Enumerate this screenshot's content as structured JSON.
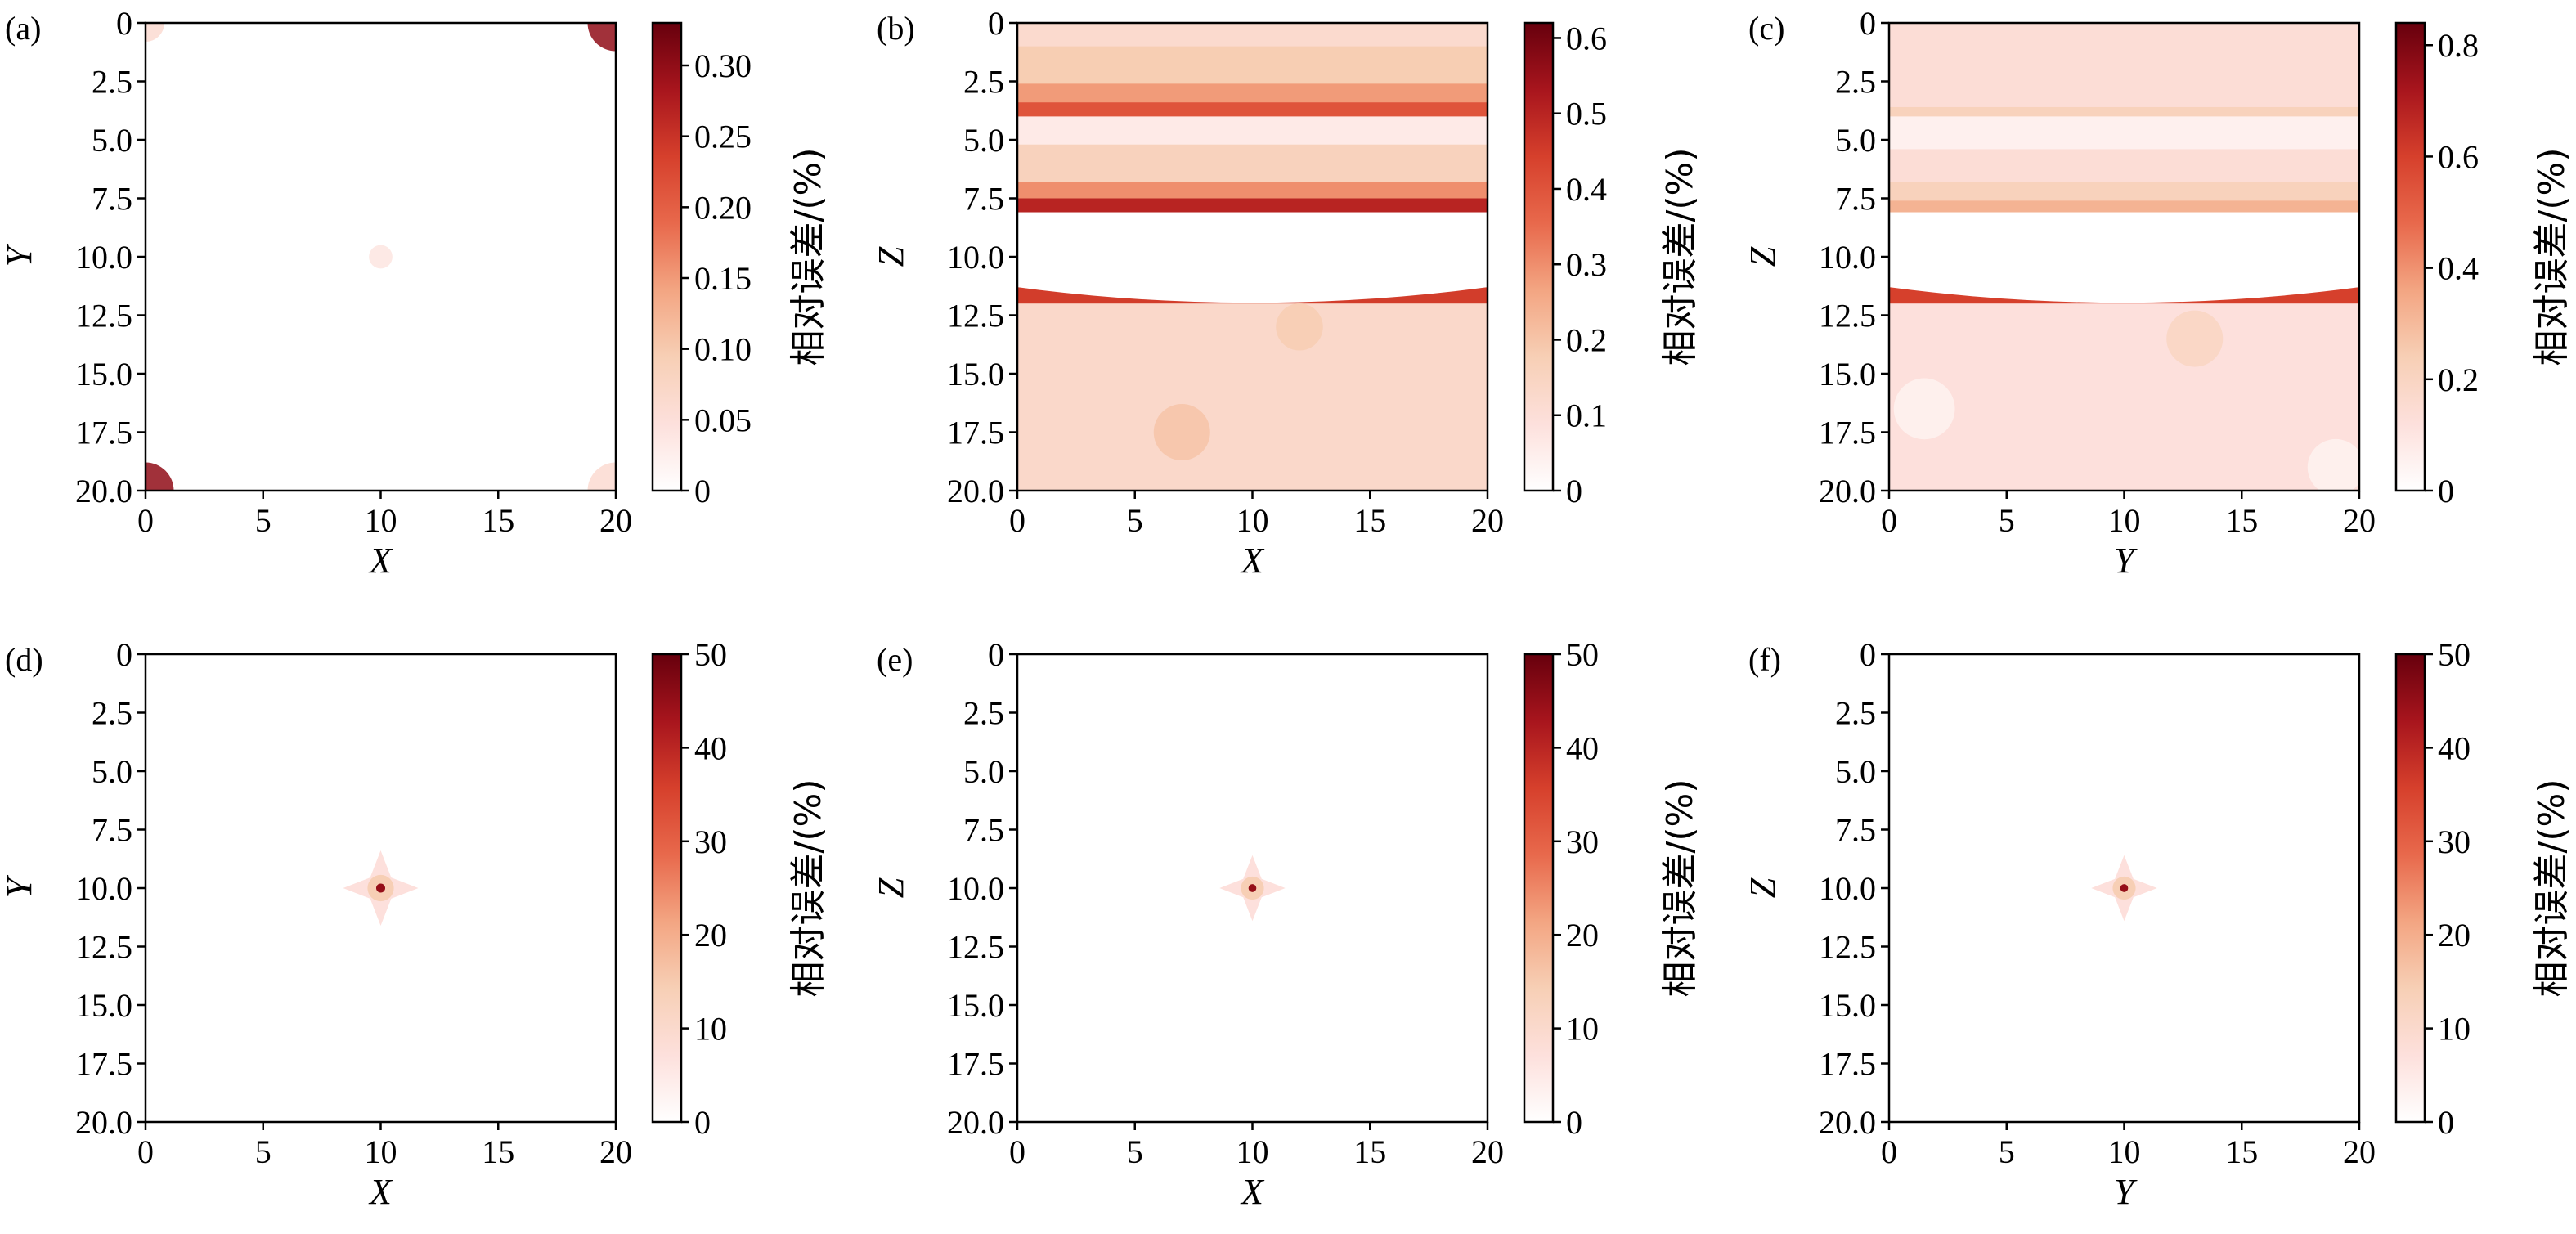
{
  "colormap": [
    "#ffffff",
    "#fde0dc",
    "#f7cfb5",
    "#f3a582",
    "#e8694c",
    "#d6402c",
    "#a8151d",
    "#67000d"
  ],
  "colorbar_label": "相对误差/(%)",
  "chart_data": [
    {
      "type": "heatmap",
      "panel": "(a)",
      "xlabel": "X",
      "ylabel": "Y",
      "xlim": [
        0,
        20
      ],
      "ylim": [
        20,
        0
      ],
      "xticks": [
        0,
        5,
        10,
        15,
        20
      ],
      "yticks": [
        0,
        2.5,
        5.0,
        7.5,
        10.0,
        12.5,
        15.0,
        17.5,
        20.0
      ],
      "colorbar": {
        "label": "相对误差/(%)",
        "min": 0,
        "max": 0.33,
        "ticks": [
          0,
          0.05,
          0.1,
          0.15,
          0.2,
          0.25,
          0.3
        ]
      },
      "tick_text": {
        "x": [
          "0",
          "5",
          "10",
          "15",
          "20"
        ],
        "y": [
          "0",
          "2.5",
          "5.0",
          "7.5",
          "10.0",
          "12.5",
          "15.0",
          "17.5",
          "20.0"
        ],
        "cbar": [
          "0",
          "0.05",
          "0.10",
          "0.15",
          "0.20",
          "0.25",
          "0.30"
        ]
      },
      "bands": [],
      "features": [
        {
          "kind": "corner",
          "x": 0,
          "y": 0,
          "r": 0.8,
          "value": 0.06
        },
        {
          "kind": "corner",
          "x": 20,
          "y": 0,
          "r": 1.2,
          "value": 0.3
        },
        {
          "kind": "corner",
          "x": 0,
          "y": 20,
          "r": 1.2,
          "value": 0.3
        },
        {
          "kind": "corner",
          "x": 20,
          "y": 20,
          "r": 1.2,
          "value": 0.06
        },
        {
          "kind": "spot",
          "x": 10,
          "y": 10,
          "r": 0.5,
          "value": 0.04
        }
      ]
    },
    {
      "type": "heatmap",
      "panel": "(b)",
      "xlabel": "X",
      "ylabel": "Z",
      "xlim": [
        0,
        20
      ],
      "ylim": [
        20,
        0
      ],
      "xticks": [
        0,
        5,
        10,
        15,
        20
      ],
      "yticks": [
        0,
        2.5,
        5.0,
        7.5,
        10.0,
        12.5,
        15.0,
        17.5,
        20.0
      ],
      "colorbar": {
        "label": "相对误差/(%)",
        "min": 0,
        "max": 0.62,
        "ticks": [
          0,
          0.1,
          0.2,
          0.3,
          0.4,
          0.5,
          0.6
        ]
      },
      "tick_text": {
        "x": [
          "0",
          "5",
          "10",
          "15",
          "20"
        ],
        "y": [
          "0",
          "2.5",
          "5.0",
          "7.5",
          "10.0",
          "12.5",
          "15.0",
          "17.5",
          "20.0"
        ],
        "cbar": [
          "0",
          "0.1",
          "0.2",
          "0.3",
          "0.4",
          "0.5",
          "0.6"
        ]
      },
      "bands": [
        {
          "z0": 0,
          "z1": 1.0,
          "value": 0.12
        },
        {
          "z0": 1.0,
          "z1": 2.6,
          "value": 0.18
        },
        {
          "z0": 2.6,
          "z1": 3.4,
          "value": 0.28
        },
        {
          "z0": 3.4,
          "z1": 4.0,
          "value": 0.4
        },
        {
          "z0": 4.0,
          "z1": 5.2,
          "value": 0.06
        },
        {
          "z0": 5.2,
          "z1": 6.8,
          "value": 0.16
        },
        {
          "z0": 6.8,
          "z1": 7.5,
          "value": 0.3
        },
        {
          "z0": 7.5,
          "z1": 8.1,
          "value": 0.5
        },
        {
          "z0": 8.1,
          "z1": 11.3,
          "value": 0.0
        },
        {
          "z0": 11.3,
          "z1": 12.0,
          "value": 0.45
        },
        {
          "z0": 12.0,
          "z1": 20.0,
          "value": 0.13
        }
      ],
      "features": [
        {
          "kind": "spot",
          "x": 7,
          "y": 17.5,
          "r": 1.2,
          "value": 0.2
        },
        {
          "kind": "spot",
          "x": 12,
          "y": 13,
          "r": 1.0,
          "value": 0.18
        }
      ]
    },
    {
      "type": "heatmap",
      "panel": "(c)",
      "xlabel": "Y",
      "ylabel": "Z",
      "xlim": [
        0,
        20
      ],
      "ylim": [
        20,
        0
      ],
      "xticks": [
        0,
        5,
        10,
        15,
        20
      ],
      "yticks": [
        0,
        2.5,
        5.0,
        7.5,
        10.0,
        12.5,
        15.0,
        17.5,
        20.0
      ],
      "colorbar": {
        "label": "相对误差/(%)",
        "min": 0,
        "max": 0.84,
        "ticks": [
          0,
          0.2,
          0.4,
          0.6,
          0.8
        ]
      },
      "tick_text": {
        "x": [
          "0",
          "5",
          "10",
          "15",
          "20"
        ],
        "y": [
          "0",
          "2.5",
          "5.0",
          "7.5",
          "10.0",
          "12.5",
          "15.0",
          "17.5",
          "20.0"
        ],
        "cbar": [
          "0",
          "0.2",
          "0.4",
          "0.6",
          "0.8"
        ]
      },
      "bands": [
        {
          "z0": 0,
          "z1": 3.6,
          "value": 0.14
        },
        {
          "z0": 3.6,
          "z1": 4.0,
          "value": 0.22
        },
        {
          "z0": 4.0,
          "z1": 5.4,
          "value": 0.06
        },
        {
          "z0": 5.4,
          "z1": 6.8,
          "value": 0.14
        },
        {
          "z0": 6.8,
          "z1": 7.6,
          "value": 0.22
        },
        {
          "z0": 7.6,
          "z1": 8.1,
          "value": 0.32
        },
        {
          "z0": 8.1,
          "z1": 11.3,
          "value": 0.0
        },
        {
          "z0": 11.3,
          "z1": 12.0,
          "value": 0.6
        },
        {
          "z0": 12.0,
          "z1": 20.0,
          "value": 0.12
        }
      ],
      "features": [
        {
          "kind": "spot",
          "x": 1.5,
          "y": 16.5,
          "r": 1.3,
          "value": 0.05
        },
        {
          "kind": "spot",
          "x": 19,
          "y": 19,
          "r": 1.2,
          "value": 0.05
        },
        {
          "kind": "spot",
          "x": 13,
          "y": 13.5,
          "r": 1.2,
          "value": 0.2
        }
      ]
    },
    {
      "type": "heatmap",
      "panel": "(d)",
      "xlabel": "X",
      "ylabel": "Y",
      "xlim": [
        0,
        20
      ],
      "ylim": [
        20,
        0
      ],
      "xticks": [
        0,
        5,
        10,
        15,
        20
      ],
      "yticks": [
        0,
        2.5,
        5.0,
        7.5,
        10.0,
        12.5,
        15.0,
        17.5,
        20.0
      ],
      "colorbar": {
        "label": "相对误差/(%)",
        "min": 0,
        "max": 50,
        "ticks": [
          0,
          10,
          20,
          30,
          40,
          50
        ]
      },
      "tick_text": {
        "x": [
          "0",
          "5",
          "10",
          "15",
          "20"
        ],
        "y": [
          "0",
          "2.5",
          "5.0",
          "7.5",
          "10.0",
          "12.5",
          "15.0",
          "17.5",
          "20.0"
        ],
        "cbar": [
          "0",
          "10",
          "20",
          "30",
          "40",
          "50"
        ]
      },
      "bands": [],
      "features": [
        {
          "kind": "star",
          "x": 10,
          "y": 10,
          "r": 1.6,
          "value": 45
        }
      ]
    },
    {
      "type": "heatmap",
      "panel": "(e)",
      "xlabel": "X",
      "ylabel": "Z",
      "xlim": [
        0,
        20
      ],
      "ylim": [
        20,
        0
      ],
      "xticks": [
        0,
        5,
        10,
        15,
        20
      ],
      "yticks": [
        0,
        2.5,
        5.0,
        7.5,
        10.0,
        12.5,
        15.0,
        17.5,
        20.0
      ],
      "colorbar": {
        "label": "相对误差/(%)",
        "min": 0,
        "max": 50,
        "ticks": [
          0,
          10,
          20,
          30,
          40,
          50
        ]
      },
      "tick_text": {
        "x": [
          "0",
          "5",
          "10",
          "15",
          "20"
        ],
        "y": [
          "0",
          "2.5",
          "5.0",
          "7.5",
          "10.0",
          "12.5",
          "15.0",
          "17.5",
          "20.0"
        ],
        "cbar": [
          "0",
          "10",
          "20",
          "30",
          "40",
          "50"
        ]
      },
      "bands": [],
      "features": [
        {
          "kind": "star",
          "x": 10,
          "y": 10,
          "r": 1.4,
          "value": 45
        }
      ]
    },
    {
      "type": "heatmap",
      "panel": "(f)",
      "xlabel": "Y",
      "ylabel": "Z",
      "xlim": [
        0,
        20
      ],
      "ylim": [
        20,
        0
      ],
      "xticks": [
        0,
        5,
        10,
        15,
        20
      ],
      "yticks": [
        0,
        2.5,
        5.0,
        7.5,
        10.0,
        12.5,
        15.0,
        17.5,
        20.0
      ],
      "colorbar": {
        "label": "相对误差/(%)",
        "min": 0,
        "max": 50,
        "ticks": [
          0,
          10,
          20,
          30,
          40,
          50
        ]
      },
      "tick_text": {
        "x": [
          "0",
          "5",
          "10",
          "15",
          "20"
        ],
        "y": [
          "0",
          "2.5",
          "5.0",
          "7.5",
          "10.0",
          "12.5",
          "15.0",
          "17.5",
          "20.0"
        ],
        "cbar": [
          "0",
          "10",
          "20",
          "30",
          "40",
          "50"
        ]
      },
      "bands": [],
      "features": [
        {
          "kind": "star",
          "x": 10,
          "y": 10,
          "r": 1.4,
          "value": 45
        }
      ]
    }
  ]
}
